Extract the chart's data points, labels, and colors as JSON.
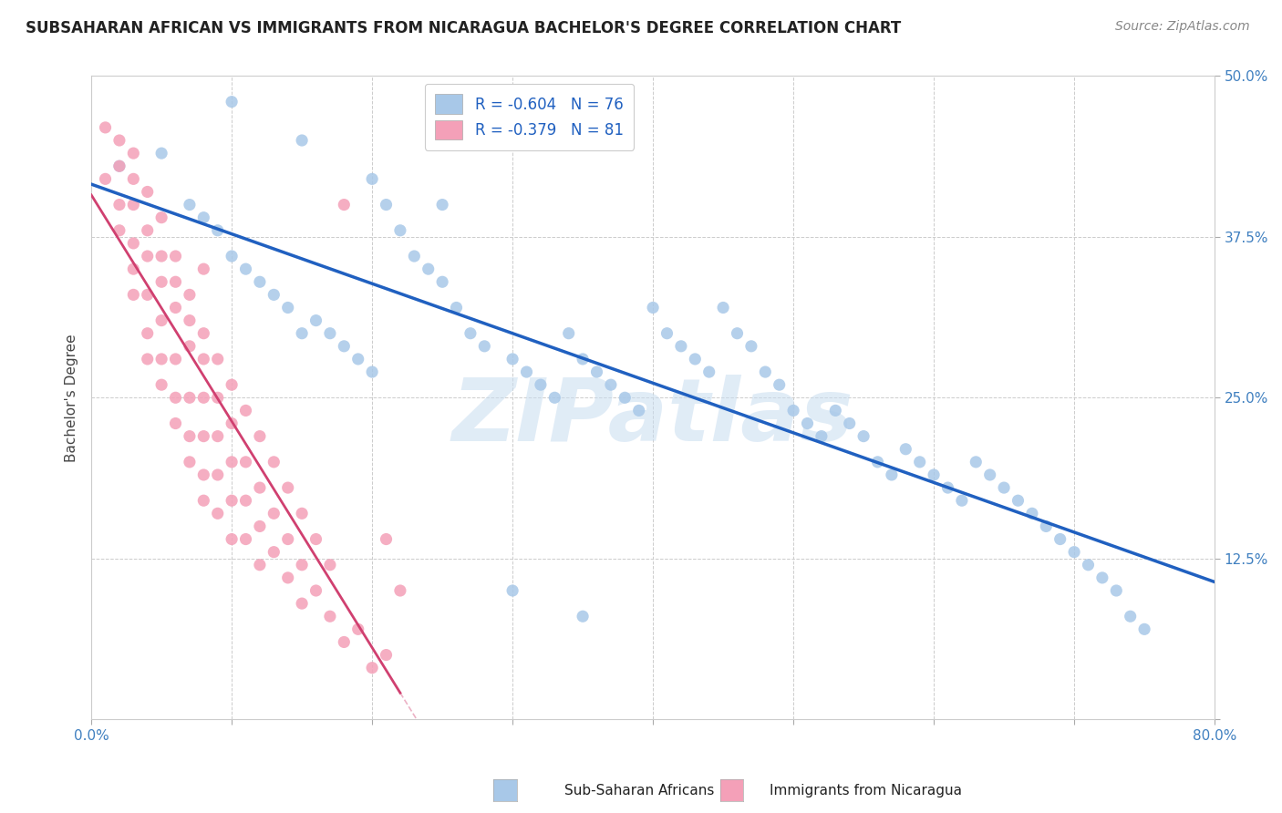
{
  "title": "SUBSAHARAN AFRICAN VS IMMIGRANTS FROM NICARAGUA BACHELOR'S DEGREE CORRELATION CHART",
  "source": "Source: ZipAtlas.com",
  "ylabel": "Bachelor's Degree",
  "xlim": [
    0.0,
    0.8
  ],
  "ylim": [
    0.0,
    0.5
  ],
  "blue_color": "#a8c8e8",
  "pink_color": "#f4a0b8",
  "blue_line_color": "#2060c0",
  "pink_line_color": "#d04070",
  "R_blue": -0.604,
  "N_blue": 76,
  "R_pink": -0.379,
  "N_pink": 81,
  "watermark": "ZIPatlas",
  "legend_label_blue": "Sub-Saharan Africans",
  "legend_label_pink": "Immigrants from Nicaragua",
  "title_color": "#222222",
  "axis_color": "#4080c0",
  "blue_scatter_x": [
    0.02,
    0.05,
    0.07,
    0.08,
    0.09,
    0.1,
    0.11,
    0.12,
    0.13,
    0.14,
    0.15,
    0.16,
    0.17,
    0.18,
    0.19,
    0.2,
    0.21,
    0.22,
    0.23,
    0.24,
    0.25,
    0.26,
    0.27,
    0.28,
    0.3,
    0.31,
    0.32,
    0.33,
    0.34,
    0.35,
    0.36,
    0.37,
    0.38,
    0.39,
    0.4,
    0.41,
    0.42,
    0.43,
    0.44,
    0.45,
    0.46,
    0.47,
    0.48,
    0.49,
    0.5,
    0.51,
    0.52,
    0.53,
    0.54,
    0.55,
    0.56,
    0.57,
    0.58,
    0.59,
    0.6,
    0.61,
    0.62,
    0.63,
    0.64,
    0.65,
    0.66,
    0.67,
    0.68,
    0.69,
    0.7,
    0.71,
    0.72,
    0.73,
    0.74,
    0.75,
    0.1,
    0.15,
    0.2,
    0.25,
    0.3,
    0.35
  ],
  "blue_scatter_y": [
    0.43,
    0.44,
    0.4,
    0.39,
    0.38,
    0.36,
    0.35,
    0.34,
    0.33,
    0.32,
    0.3,
    0.31,
    0.3,
    0.29,
    0.28,
    0.27,
    0.4,
    0.38,
    0.36,
    0.35,
    0.34,
    0.32,
    0.3,
    0.29,
    0.28,
    0.27,
    0.26,
    0.25,
    0.3,
    0.28,
    0.27,
    0.26,
    0.25,
    0.24,
    0.32,
    0.3,
    0.29,
    0.28,
    0.27,
    0.32,
    0.3,
    0.29,
    0.27,
    0.26,
    0.24,
    0.23,
    0.22,
    0.24,
    0.23,
    0.22,
    0.2,
    0.19,
    0.21,
    0.2,
    0.19,
    0.18,
    0.17,
    0.2,
    0.19,
    0.18,
    0.17,
    0.16,
    0.15,
    0.14,
    0.13,
    0.12,
    0.11,
    0.1,
    0.08,
    0.07,
    0.48,
    0.45,
    0.42,
    0.4,
    0.1,
    0.08
  ],
  "pink_scatter_x": [
    0.01,
    0.01,
    0.02,
    0.02,
    0.02,
    0.02,
    0.03,
    0.03,
    0.03,
    0.03,
    0.03,
    0.03,
    0.04,
    0.04,
    0.04,
    0.04,
    0.04,
    0.04,
    0.05,
    0.05,
    0.05,
    0.05,
    0.05,
    0.05,
    0.06,
    0.06,
    0.06,
    0.06,
    0.06,
    0.06,
    0.07,
    0.07,
    0.07,
    0.07,
    0.07,
    0.07,
    0.08,
    0.08,
    0.08,
    0.08,
    0.08,
    0.08,
    0.09,
    0.09,
    0.09,
    0.09,
    0.09,
    0.1,
    0.1,
    0.1,
    0.1,
    0.1,
    0.11,
    0.11,
    0.11,
    0.11,
    0.12,
    0.12,
    0.12,
    0.12,
    0.13,
    0.13,
    0.13,
    0.14,
    0.14,
    0.14,
    0.15,
    0.15,
    0.15,
    0.16,
    0.16,
    0.17,
    0.17,
    0.18,
    0.18,
    0.19,
    0.2,
    0.21,
    0.21,
    0.22,
    0.08
  ],
  "pink_scatter_y": [
    0.46,
    0.42,
    0.45,
    0.43,
    0.4,
    0.38,
    0.44,
    0.42,
    0.4,
    0.37,
    0.35,
    0.33,
    0.41,
    0.38,
    0.36,
    0.33,
    0.3,
    0.28,
    0.39,
    0.36,
    0.34,
    0.31,
    0.28,
    0.26,
    0.36,
    0.34,
    0.32,
    0.28,
    0.25,
    0.23,
    0.33,
    0.31,
    0.29,
    0.25,
    0.22,
    0.2,
    0.3,
    0.28,
    0.25,
    0.22,
    0.19,
    0.17,
    0.28,
    0.25,
    0.22,
    0.19,
    0.16,
    0.26,
    0.23,
    0.2,
    0.17,
    0.14,
    0.24,
    0.2,
    0.17,
    0.14,
    0.22,
    0.18,
    0.15,
    0.12,
    0.2,
    0.16,
    0.13,
    0.18,
    0.14,
    0.11,
    0.16,
    0.12,
    0.09,
    0.14,
    0.1,
    0.12,
    0.08,
    0.4,
    0.06,
    0.07,
    0.04,
    0.14,
    0.05,
    0.1,
    0.35
  ]
}
